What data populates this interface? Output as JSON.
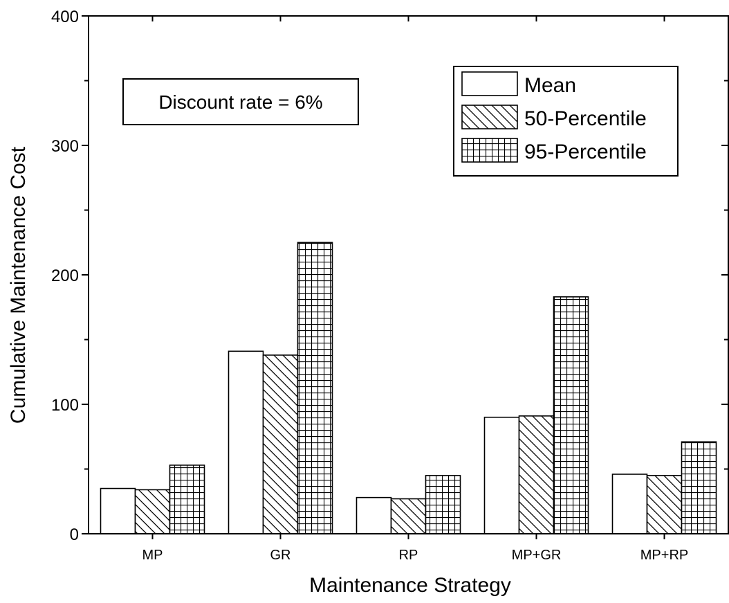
{
  "chart_data": {
    "type": "bar",
    "xlabel": "Maintenance Strategy",
    "ylabel": "Cumulative Maintenance Cost",
    "categories": [
      "MP",
      "GR",
      "RP",
      "MP+GR",
      "MP+RP"
    ],
    "ylim": [
      0,
      400
    ],
    "yticks": [
      0,
      100,
      200,
      300,
      400
    ],
    "grid": false,
    "legend_position": "top-right",
    "series": [
      {
        "name": "Mean",
        "pattern": "none",
        "values": [
          35,
          141,
          28,
          90,
          46
        ]
      },
      {
        "name": "50-Percentile",
        "pattern": "diagonal",
        "values": [
          34,
          138,
          27,
          91,
          45
        ]
      },
      {
        "name": "95-Percentile",
        "pattern": "grid",
        "values": [
          53,
          225,
          45,
          183,
          71
        ]
      }
    ],
    "annotation": "Discount rate = 6%"
  }
}
